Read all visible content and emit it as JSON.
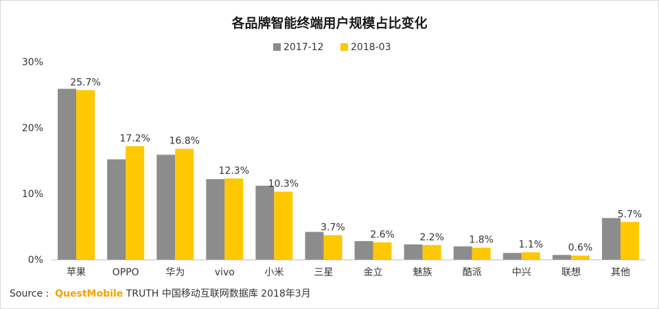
{
  "chart_data": {
    "type": "bar",
    "title": "各品牌智能终端用户规模占比变化",
    "categories": [
      "苹果",
      "OPPO",
      "华为",
      "vivo",
      "小米",
      "三星",
      "金立",
      "魅族",
      "酷派",
      "中兴",
      "联想",
      "其他"
    ],
    "series": [
      {
        "name": "2017-12",
        "color": "#8c8c8c",
        "values": [
          25.9,
          15.2,
          15.9,
          12.2,
          11.2,
          4.2,
          2.8,
          2.3,
          2.0,
          1.0,
          0.7,
          6.3
        ]
      },
      {
        "name": "2018-03",
        "color": "#ffc800",
        "values": [
          25.7,
          17.2,
          16.8,
          12.3,
          10.3,
          3.7,
          2.6,
          2.2,
          1.8,
          1.1,
          0.6,
          5.7
        ]
      }
    ],
    "data_labels": [
      "25.7%",
      "17.2%",
      "16.8%",
      "12.3%",
      "10.3%",
      "3.7%",
      "2.6%",
      "2.2%",
      "1.8%",
      "1.1%",
      "0.6%",
      "5.7%"
    ],
    "y_ticks": [
      "0%",
      "10%",
      "20%",
      "30%"
    ],
    "ylim": [
      0,
      30
    ],
    "legend_position": "top-center",
    "grid": false
  },
  "source": {
    "prefix": "Source :  ",
    "brand": "QuestMobile",
    "suffix": " TRUTH 中国移动互联网数据库 2018年3月"
  }
}
